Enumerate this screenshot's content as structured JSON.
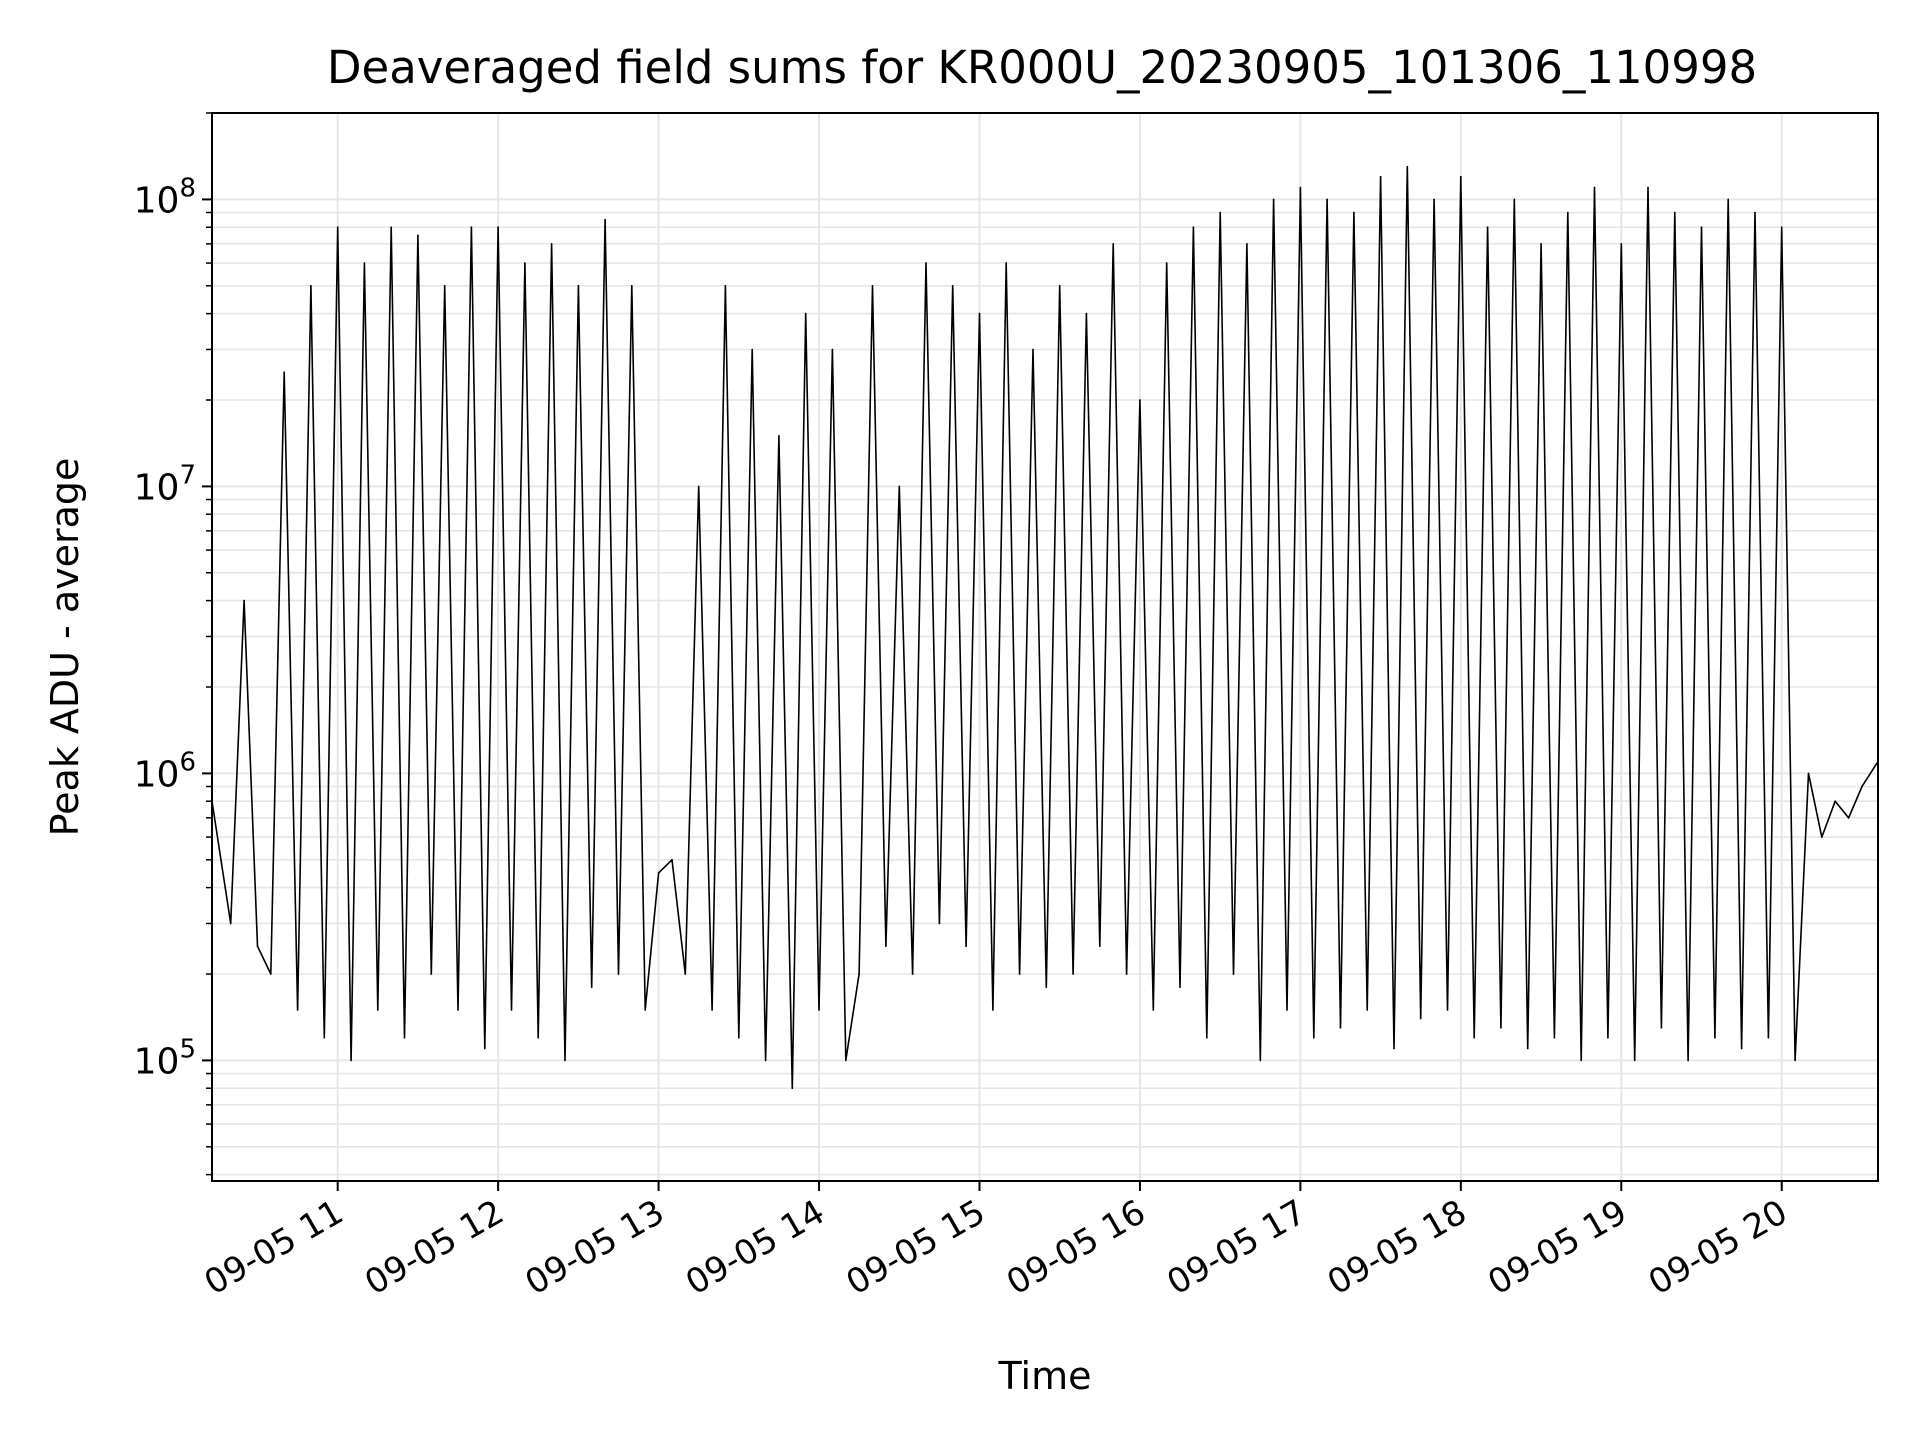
{
  "chart_data": {
    "type": "line",
    "title": "Deaveraged field sums for KR000U_20230905_101306_110998",
    "xlabel": "Time",
    "ylabel": "Peak ADU - average",
    "yscale": "log",
    "ylim": [
      38000,
      200000000
    ],
    "xlim": [
      "09-05 10:13",
      "09-05 20:36"
    ],
    "grid": true,
    "legend": "none",
    "line_color": "#000000",
    "x_ticks": [
      "09-05 11",
      "09-05 12",
      "09-05 13",
      "09-05 14",
      "09-05 15",
      "09-05 16",
      "09-05 17",
      "09-05 18",
      "09-05 19",
      "09-05 20"
    ],
    "y_ticks": [
      {
        "base": "10",
        "exp": "5",
        "value": 100000
      },
      {
        "base": "10",
        "exp": "6",
        "value": 1000000
      },
      {
        "base": "10",
        "exp": "7",
        "value": 10000000
      },
      {
        "base": "10",
        "exp": "8",
        "value": 100000000
      }
    ],
    "series": [
      {
        "x": [
          "09-05 10:13",
          "09-05 10:20",
          "09-05 10:25",
          "09-05 10:30",
          "09-05 10:35",
          "09-05 10:40",
          "09-05 10:45",
          "09-05 10:50",
          "09-05 10:55",
          "09-05 11:00",
          "09-05 11:05",
          "09-05 11:10",
          "09-05 11:15",
          "09-05 11:20",
          "09-05 11:25",
          "09-05 11:30",
          "09-05 11:35",
          "09-05 11:40",
          "09-05 11:45",
          "09-05 11:50",
          "09-05 11:55",
          "09-05 12:00",
          "09-05 12:05",
          "09-05 12:10",
          "09-05 12:15",
          "09-05 12:20",
          "09-05 12:25",
          "09-05 12:30",
          "09-05 12:35",
          "09-05 12:40",
          "09-05 12:45",
          "09-05 12:50",
          "09-05 12:55",
          "09-05 13:00",
          "09-05 13:05",
          "09-05 13:10",
          "09-05 13:15",
          "09-05 13:20",
          "09-05 13:25",
          "09-05 13:30",
          "09-05 13:35",
          "09-05 13:40",
          "09-05 13:45",
          "09-05 13:50",
          "09-05 13:55",
          "09-05 14:00",
          "09-05 14:05",
          "09-05 14:10",
          "09-05 14:15",
          "09-05 14:20",
          "09-05 14:25",
          "09-05 14:30",
          "09-05 14:35",
          "09-05 14:40",
          "09-05 14:45",
          "09-05 14:50",
          "09-05 14:55",
          "09-05 15:00",
          "09-05 15:05",
          "09-05 15:10",
          "09-05 15:15",
          "09-05 15:20",
          "09-05 15:25",
          "09-05 15:30",
          "09-05 15:35",
          "09-05 15:40",
          "09-05 15:45",
          "09-05 15:50",
          "09-05 15:55",
          "09-05 16:00",
          "09-05 16:05",
          "09-05 16:10",
          "09-05 16:15",
          "09-05 16:20",
          "09-05 16:25",
          "09-05 16:30",
          "09-05 16:35",
          "09-05 16:40",
          "09-05 16:45",
          "09-05 16:50",
          "09-05 16:55",
          "09-05 17:00",
          "09-05 17:05",
          "09-05 17:10",
          "09-05 17:15",
          "09-05 17:20",
          "09-05 17:25",
          "09-05 17:30",
          "09-05 17:35",
          "09-05 17:40",
          "09-05 17:45",
          "09-05 17:50",
          "09-05 17:55",
          "09-05 18:00",
          "09-05 18:05",
          "09-05 18:10",
          "09-05 18:15",
          "09-05 18:20",
          "09-05 18:25",
          "09-05 18:30",
          "09-05 18:35",
          "09-05 18:40",
          "09-05 18:45",
          "09-05 18:50",
          "09-05 18:55",
          "09-05 19:00",
          "09-05 19:05",
          "09-05 19:10",
          "09-05 19:15",
          "09-05 19:20",
          "09-05 19:25",
          "09-05 19:30",
          "09-05 19:35",
          "09-05 19:40",
          "09-05 19:45",
          "09-05 19:50",
          "09-05 19:55",
          "09-05 20:00",
          "09-05 20:05",
          "09-05 20:10",
          "09-05 20:15",
          "09-05 20:20",
          "09-05 20:25",
          "09-05 20:30",
          "09-05 20:36"
        ],
        "values": [
          800000,
          300000,
          4000000,
          250000,
          200000,
          25000000,
          150000,
          50000000,
          120000,
          80000000,
          100000,
          60000000,
          150000,
          80000000,
          120000,
          75000000,
          200000,
          50000000,
          150000,
          80000000,
          110000,
          80000000,
          150000,
          60000000,
          120000,
          70000000,
          100000,
          50000000,
          180000,
          85000000,
          200000,
          50000000,
          150000,
          450000,
          500000,
          200000,
          10000000,
          150000,
          50000000,
          120000,
          30000000,
          100000,
          15000000,
          80000,
          40000000,
          150000,
          30000000,
          100000,
          200000,
          50000000,
          250000,
          10000000,
          200000,
          60000000,
          300000,
          50000000,
          250000,
          40000000,
          150000,
          60000000,
          200000,
          30000000,
          180000,
          50000000,
          200000,
          40000000,
          250000,
          70000000,
          200000,
          20000000,
          150000,
          60000000,
          180000,
          80000000,
          120000,
          90000000,
          200000,
          70000000,
          100000,
          100000000,
          150000,
          110000000,
          120000,
          100000000,
          130000,
          90000000,
          150000,
          120000000,
          110000,
          130000000,
          140000,
          100000000,
          150000,
          120000000,
          120000,
          80000000,
          130000,
          100000000,
          110000,
          70000000,
          120000,
          90000000,
          100000,
          110000000,
          120000,
          70000000,
          100000,
          110000000,
          130000,
          90000000,
          100000,
          80000000,
          120000,
          100000000,
          110000,
          90000000,
          120000,
          80000000,
          100000,
          1000000,
          600000,
          800000,
          700000,
          900000,
          1100000
        ]
      }
    ]
  }
}
